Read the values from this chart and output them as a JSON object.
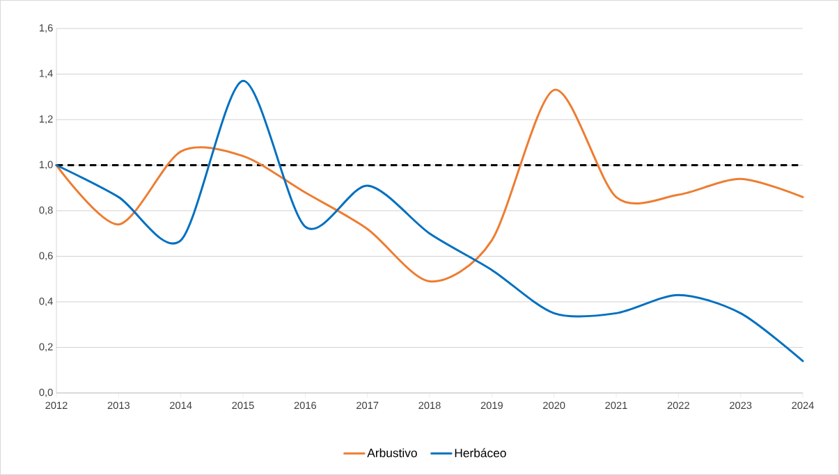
{
  "chart_data": {
    "type": "line",
    "x": [
      2012,
      2013,
      2014,
      2015,
      2016,
      2017,
      2018,
      2019,
      2020,
      2021,
      2022,
      2023,
      2024
    ],
    "series": [
      {
        "name": "Arbustivo",
        "color": "#ed7d31",
        "values": [
          1.0,
          0.74,
          1.06,
          1.04,
          0.88,
          0.72,
          0.49,
          0.67,
          1.33,
          0.86,
          0.87,
          0.94,
          0.86
        ]
      },
      {
        "name": "Herbáceo",
        "color": "#0070c0",
        "values": [
          1.0,
          0.86,
          0.67,
          1.37,
          0.73,
          0.91,
          0.7,
          0.54,
          0.35,
          0.35,
          0.43,
          0.35,
          0.14
        ]
      }
    ],
    "xlim": [
      2012,
      2024
    ],
    "xticks": [
      2012,
      2013,
      2014,
      2015,
      2016,
      2017,
      2018,
      2019,
      2020,
      2021,
      2022,
      2023,
      2024
    ],
    "ylim": [
      0,
      1.6
    ],
    "yticks": [
      {
        "value": 0,
        "label": "0,0"
      },
      {
        "value": 0.2,
        "label": "0,2"
      },
      {
        "value": 0.4,
        "label": "0,4"
      },
      {
        "value": 0.6,
        "label": "0,6"
      },
      {
        "value": 0.8,
        "label": "0,8"
      },
      {
        "value": 1.0,
        "label": "1,0"
      },
      {
        "value": 1.2,
        "label": "1,2"
      },
      {
        "value": 1.4,
        "label": "1,4"
      },
      {
        "value": 1.6,
        "label": "1,6"
      }
    ],
    "ref_lines": [
      {
        "axis": "y",
        "value": 1.0,
        "color": "#000000",
        "line_style": "dashed"
      }
    ],
    "grid": "y",
    "legend": "bottom"
  }
}
